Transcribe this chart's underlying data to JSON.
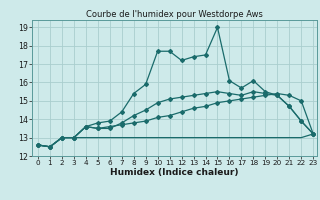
{
  "title": "Courbe de l'humidex pour Westdorpe Aws",
  "xlabel": "Humidex (Indice chaleur)",
  "bg_color": "#ceeaea",
  "grid_color": "#aacece",
  "line_color": "#1a6b6b",
  "xlim": [
    -0.5,
    23.3
  ],
  "ylim": [
    12,
    19.4
  ],
  "xticks": [
    0,
    1,
    2,
    3,
    4,
    5,
    6,
    7,
    8,
    9,
    10,
    11,
    12,
    13,
    14,
    15,
    16,
    17,
    18,
    19,
    20,
    21,
    22,
    23
  ],
  "yticks": [
    12,
    13,
    14,
    15,
    16,
    17,
    18,
    19
  ],
  "series": [
    [
      12.6,
      12.5,
      13.0,
      13.0,
      13.6,
      13.8,
      13.9,
      14.4,
      15.4,
      15.9,
      17.7,
      17.7,
      17.2,
      17.4,
      17.5,
      19.0,
      16.1,
      15.7,
      16.1,
      15.5,
      15.3,
      14.7,
      13.9,
      13.2
    ],
    [
      12.6,
      12.5,
      13.0,
      13.0,
      13.6,
      13.5,
      13.6,
      13.7,
      13.8,
      13.9,
      14.1,
      14.2,
      14.4,
      14.6,
      14.7,
      14.9,
      15.0,
      15.1,
      15.2,
      15.3,
      15.4,
      15.3,
      15.0,
      13.2
    ],
    [
      12.6,
      12.5,
      13.0,
      13.0,
      13.0,
      13.0,
      13.0,
      13.0,
      13.0,
      13.0,
      13.0,
      13.0,
      13.0,
      13.0,
      13.0,
      13.0,
      13.0,
      13.0,
      13.0,
      13.0,
      13.0,
      13.0,
      13.0,
      13.2
    ],
    [
      12.6,
      12.5,
      13.0,
      13.0,
      13.6,
      13.5,
      13.5,
      13.8,
      14.2,
      14.5,
      14.9,
      15.1,
      15.2,
      15.3,
      15.4,
      15.5,
      15.4,
      15.3,
      15.5,
      15.4,
      15.3,
      14.7,
      13.9,
      13.2
    ]
  ],
  "series_markers": [
    true,
    true,
    false,
    true
  ],
  "title_fontsize": 6.0,
  "xlabel_fontsize": 6.5,
  "tick_fontsize": 5.2
}
